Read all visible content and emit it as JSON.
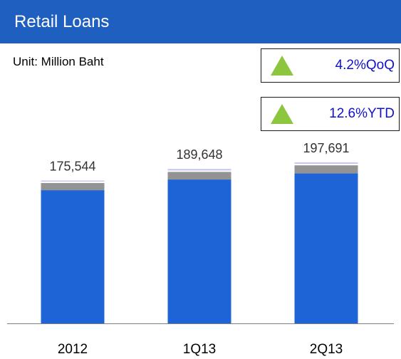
{
  "header": {
    "title": "Retail Loans"
  },
  "unit": "Unit: Million Baht",
  "kpis": [
    {
      "value": "4.2%QoQ",
      "icon": "up-triangle-icon",
      "color": "#8cc63f"
    },
    {
      "value": "12.6%YTD",
      "icon": "up-triangle-icon",
      "color": "#8cc63f"
    }
  ],
  "chart_data": {
    "type": "bar",
    "stacked": true,
    "categories": [
      "2012",
      "1Q13",
      "2Q13"
    ],
    "totals": [
      175544,
      189648,
      197691
    ],
    "total_labels": [
      "175,544",
      "189,648",
      "197,691"
    ],
    "series": [
      {
        "values": [
          162000,
          175000,
          182500
        ],
        "color": "#1e64d6"
      },
      {
        "values": [
          10500,
          11000,
          11500
        ],
        "color": "#939393"
      },
      {
        "values": [
          3044,
          3648,
          3691
        ],
        "color": "#c8c8f0"
      }
    ],
    "grid": false,
    "legend": "none"
  }
}
